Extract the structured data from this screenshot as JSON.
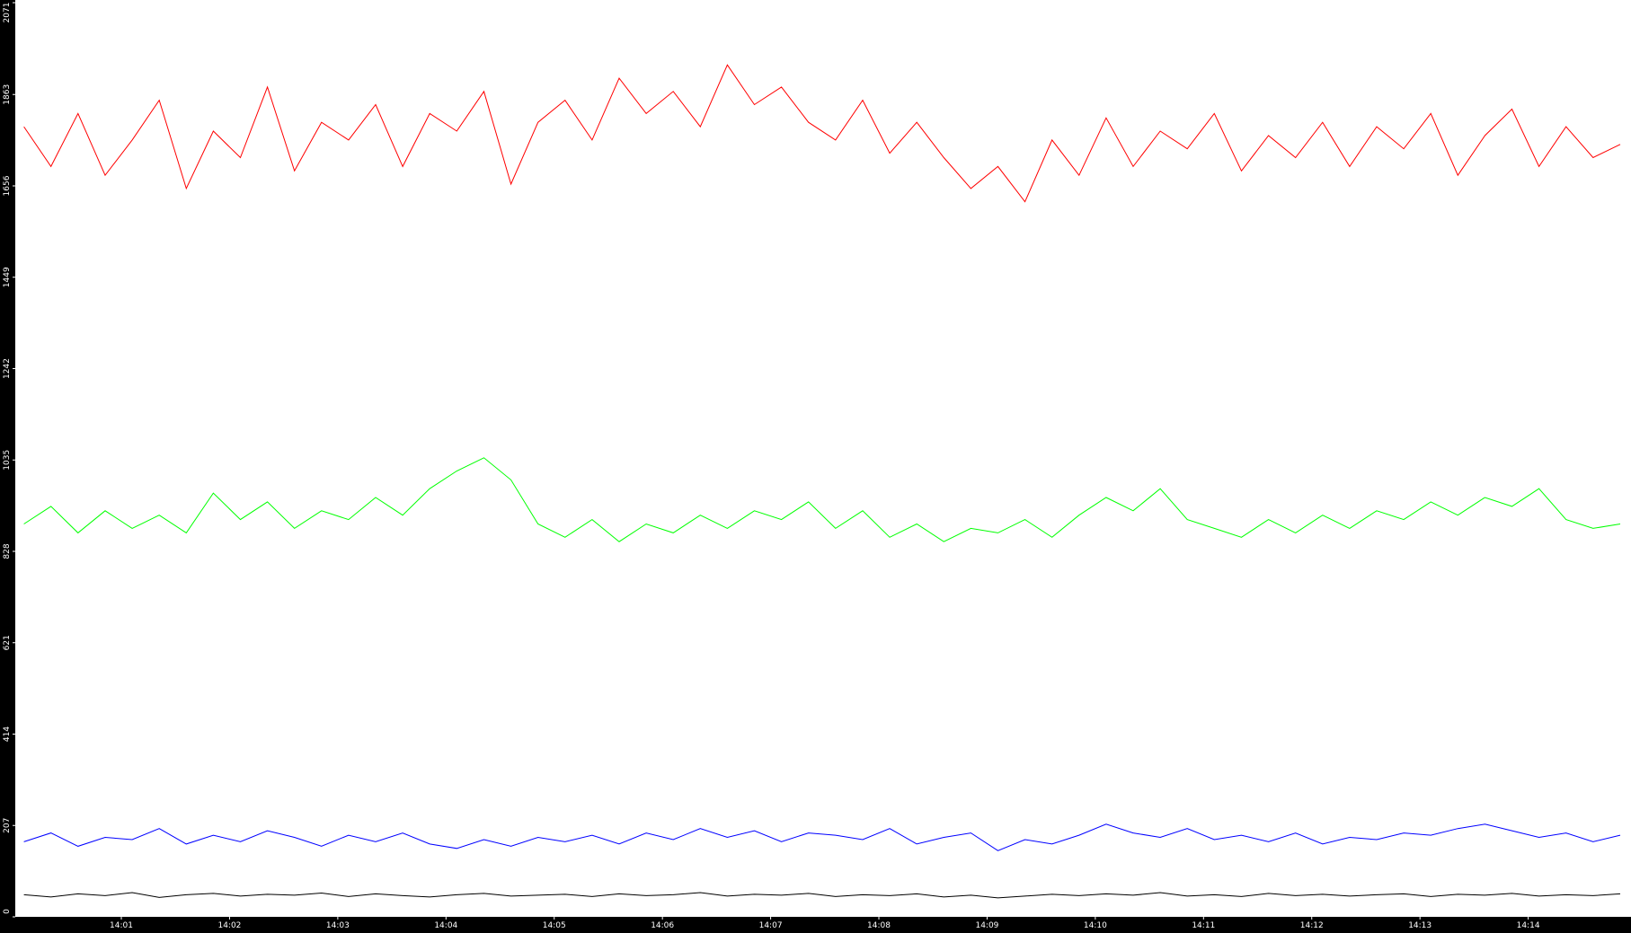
{
  "chart_data": {
    "type": "line",
    "x": [
      0.1,
      0.35,
      0.6,
      0.85,
      1.1,
      1.35,
      1.6,
      1.85,
      2.1,
      2.35,
      2.6,
      2.85,
      3.1,
      3.35,
      3.6,
      3.85,
      4.1,
      4.35,
      4.6,
      4.85,
      5.1,
      5.35,
      5.6,
      5.85,
      6.1,
      6.35,
      6.6,
      6.85,
      7.1,
      7.35,
      7.6,
      7.85,
      8.1,
      8.35,
      8.6,
      8.85,
      9.1,
      9.35,
      9.6,
      9.85,
      10.1,
      10.35,
      10.6,
      10.85,
      11.1,
      11.35,
      11.6,
      11.85,
      12.1,
      12.35,
      12.6,
      12.85,
      13.1,
      13.35,
      13.6,
      13.85,
      14.1,
      14.35,
      14.6,
      14.85
    ],
    "series": [
      {
        "color": "#ff0000",
        "values": [
          1790,
          1700,
          1820,
          1680,
          1760,
          1850,
          1650,
          1780,
          1720,
          1880,
          1690,
          1800,
          1760,
          1840,
          1700,
          1820,
          1780,
          1870,
          1660,
          1800,
          1850,
          1760,
          1900,
          1820,
          1870,
          1790,
          1930,
          1840,
          1880,
          1800,
          1760,
          1850,
          1730,
          1800,
          1720,
          1650,
          1700,
          1620,
          1760,
          1680,
          1810,
          1700,
          1780,
          1740,
          1820,
          1690,
          1770,
          1720,
          1800,
          1700,
          1790,
          1740,
          1820,
          1680,
          1770,
          1830,
          1700,
          1790,
          1720,
          1750
        ]
      },
      {
        "color": "#00ff00",
        "values": [
          890,
          930,
          870,
          920,
          880,
          910,
          870,
          960,
          900,
          940,
          880,
          920,
          900,
          950,
          910,
          970,
          1010,
          1040,
          990,
          890,
          860,
          900,
          850,
          890,
          870,
          910,
          880,
          920,
          900,
          940,
          880,
          920,
          860,
          890,
          850,
          880,
          870,
          900,
          860,
          910,
          950,
          920,
          970,
          900,
          880,
          860,
          900,
          870,
          910,
          880,
          920,
          900,
          940,
          910,
          950,
          930,
          970,
          900,
          880,
          890
        ]
      },
      {
        "color": "#0000ff",
        "values": [
          170,
          190,
          160,
          180,
          175,
          200,
          165,
          185,
          170,
          195,
          180,
          160,
          185,
          170,
          190,
          165,
          155,
          175,
          160,
          180,
          170,
          185,
          165,
          190,
          175,
          200,
          180,
          195,
          170,
          190,
          185,
          175,
          200,
          165,
          180,
          190,
          150,
          175,
          165,
          185,
          210,
          190,
          180,
          200,
          175,
          185,
          170,
          190,
          165,
          180,
          175,
          190,
          185,
          200,
          210,
          195,
          180,
          190,
          170,
          185
        ]
      },
      {
        "color": "#000000",
        "values": [
          50,
          45,
          52,
          48,
          55,
          44,
          50,
          53,
          47,
          51,
          49,
          54,
          46,
          52,
          48,
          45,
          50,
          53,
          47,
          49,
          51,
          46,
          52,
          48,
          50,
          55,
          47,
          51,
          49,
          53,
          46,
          50,
          48,
          52,
          45,
          49,
          43,
          47,
          51,
          48,
          52,
          49,
          55,
          47,
          50,
          46,
          53,
          48,
          51,
          47,
          50,
          52,
          46,
          51,
          49,
          53,
          47,
          50,
          48,
          52
        ]
      }
    ],
    "xlim": [
      0.02,
      14.95
    ],
    "xticks": [
      {
        "value": 1,
        "label": "14:01"
      },
      {
        "value": 2,
        "label": "14:02"
      },
      {
        "value": 3,
        "label": "14:03"
      },
      {
        "value": 4,
        "label": "14:04"
      },
      {
        "value": 5,
        "label": "14:05"
      },
      {
        "value": 6,
        "label": "14:06"
      },
      {
        "value": 7,
        "label": "14:07"
      },
      {
        "value": 8,
        "label": "14:08"
      },
      {
        "value": 9,
        "label": "14:09"
      },
      {
        "value": 10,
        "label": "14:10"
      },
      {
        "value": 11,
        "label": "14:11"
      },
      {
        "value": 12,
        "label": "14:12"
      },
      {
        "value": 13,
        "label": "14:13"
      },
      {
        "value": 14,
        "label": "14:14"
      }
    ],
    "ylim": [
      0,
      2071
    ],
    "yticks": [
      0,
      207,
      414,
      621,
      828,
      1035,
      1242,
      1449,
      1656,
      1863,
      2071
    ]
  }
}
